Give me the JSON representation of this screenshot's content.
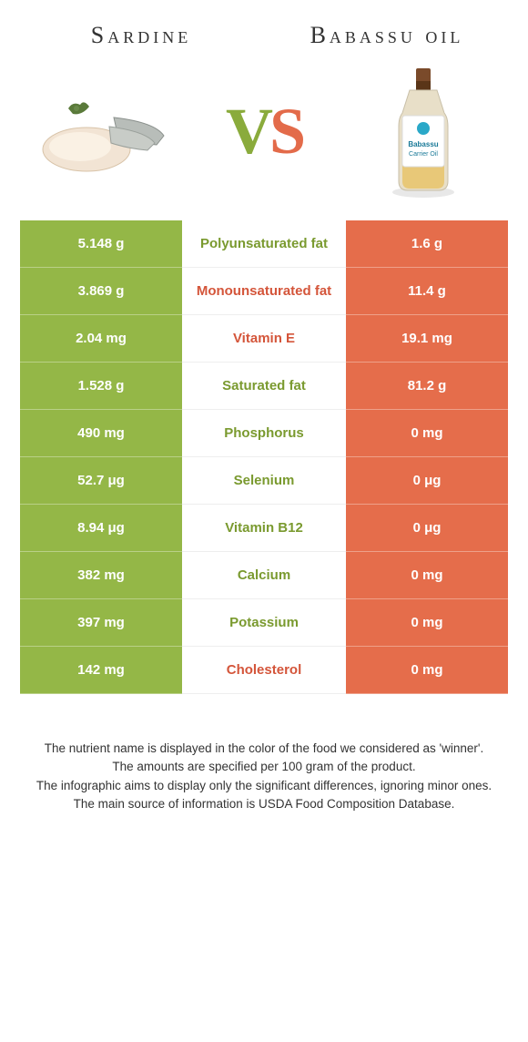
{
  "colors": {
    "left": "#94b747",
    "right": "#e56d4b",
    "mid_green_text": "#7a9a2f",
    "mid_orange_text": "#d4553a",
    "white": "#ffffff"
  },
  "header": {
    "left_title": "Sardine",
    "right_title": "Babassu oil"
  },
  "vs": {
    "v": "V",
    "s": "S"
  },
  "bottle": {
    "label1": "Babassu",
    "label2": "Carrier Oil"
  },
  "rows": [
    {
      "left": "5.148 g",
      "mid": "Polyunsaturated fat",
      "right": "1.6 g",
      "winner": "left"
    },
    {
      "left": "3.869 g",
      "mid": "Monounsaturated fat",
      "right": "11.4 g",
      "winner": "right"
    },
    {
      "left": "2.04 mg",
      "mid": "Vitamin E",
      "right": "19.1 mg",
      "winner": "right"
    },
    {
      "left": "1.528 g",
      "mid": "Saturated fat",
      "right": "81.2 g",
      "winner": "left"
    },
    {
      "left": "490 mg",
      "mid": "Phosphorus",
      "right": "0 mg",
      "winner": "left"
    },
    {
      "left": "52.7 μg",
      "mid": "Selenium",
      "right": "0 μg",
      "winner": "left"
    },
    {
      "left": "8.94 μg",
      "mid": "Vitamin B12",
      "right": "0 μg",
      "winner": "left"
    },
    {
      "left": "382 mg",
      "mid": "Calcium",
      "right": "0 mg",
      "winner": "left"
    },
    {
      "left": "397 mg",
      "mid": "Potassium",
      "right": "0 mg",
      "winner": "left"
    },
    {
      "left": "142 mg",
      "mid": "Cholesterol",
      "right": "0 mg",
      "winner": "right"
    }
  ],
  "footer": {
    "line1": "The nutrient name is displayed in the color of the food we considered as 'winner'.",
    "line2": "The amounts are specified per 100 gram of the product.",
    "line3": "The infographic aims to display only the significant differences, ignoring minor ones.",
    "line4": "The main source of information is USDA Food Composition Database."
  }
}
